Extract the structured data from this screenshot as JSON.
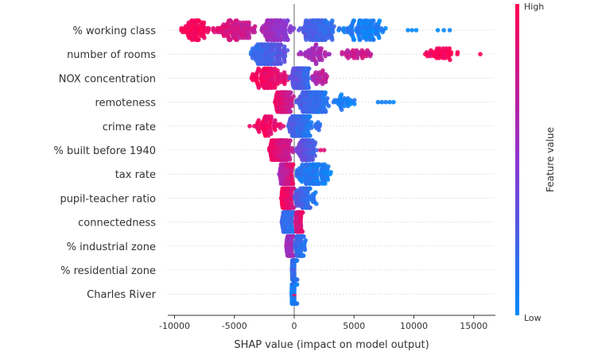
{
  "chart_data": {
    "type": "scatter",
    "subtype": "shap-beeswarm",
    "xlabel": "SHAP value (impact on model output)",
    "xlim": [
      -10700,
      16900
    ],
    "xticks": [
      -10000,
      -5000,
      0,
      5000,
      10000,
      15000
    ],
    "xtick_labels": [
      "-10000",
      "-5000",
      "0",
      "5000",
      "10000",
      "15000"
    ],
    "colorbar": {
      "label": "Feature value",
      "high_label": "High",
      "low_label": "Low",
      "low_color": "#008bfb",
      "high_color": "#ff0052"
    },
    "grid": false,
    "features": [
      {
        "name": "% working class",
        "clusters": [
          [
            -9500,
            -7000,
            90,
            1,
            0.95
          ],
          [
            -7000,
            -3000,
            110,
            0.9,
            0.7
          ],
          [
            -3000,
            0,
            150,
            0.65,
            0.45
          ],
          [
            300,
            3500,
            150,
            0.3,
            0.15
          ],
          [
            3500,
            8000,
            110,
            0.1,
            0.05
          ],
          [
            9500,
            10200,
            3,
            0.05,
            0.05
          ],
          [
            12000,
            13000,
            3,
            0.03,
            0.03
          ]
        ]
      },
      {
        "name": "number of rooms",
        "clusters": [
          [
            -3700,
            -500,
            220,
            0.15,
            0.35
          ],
          [
            0,
            3500,
            50,
            0.55,
            0.65
          ],
          [
            3500,
            6700,
            35,
            0.7,
            0.8
          ],
          [
            10500,
            14000,
            45,
            0.95,
            1
          ],
          [
            15500,
            15600,
            1,
            1,
            1
          ]
        ]
      },
      {
        "name": "NOX concentration",
        "clusters": [
          [
            -4000,
            -400,
            110,
            1,
            0.85
          ],
          [
            -400,
            1400,
            170,
            0.4,
            0.15
          ],
          [
            1400,
            3000,
            30,
            0.6,
            0.75
          ]
        ]
      },
      {
        "name": "remoteness",
        "clusters": [
          [
            -1700,
            0,
            140,
            0.95,
            0.7
          ],
          [
            0,
            3000,
            200,
            0.3,
            0.1
          ],
          [
            3000,
            5200,
            30,
            0.1,
            0.05
          ],
          [
            7000,
            8300,
            5,
            0.05,
            0.05
          ]
        ]
      },
      {
        "name": "crime rate",
        "clusters": [
          [
            -3800,
            -600,
            60,
            1,
            0.85
          ],
          [
            -600,
            1500,
            220,
            0.3,
            0.1
          ],
          [
            1500,
            2300,
            10,
            0.2,
            0.2
          ]
        ]
      },
      {
        "name": "% built before 1940",
        "clusters": [
          [
            -2200,
            0,
            170,
            0.95,
            0.7
          ],
          [
            0,
            2000,
            130,
            0.45,
            0.2
          ],
          [
            2200,
            2500,
            2,
            0.9,
            0.9
          ]
        ]
      },
      {
        "name": "tax rate",
        "clusters": [
          [
            -1300,
            0,
            150,
            0.6,
            0.9
          ],
          [
            0,
            3200,
            150,
            0.15,
            0.05
          ]
        ]
      },
      {
        "name": "pupil-teacher ratio",
        "clusters": [
          [
            -1100,
            0,
            200,
            1,
            0.8
          ],
          [
            0,
            1900,
            90,
            0.3,
            0.1
          ]
        ]
      },
      {
        "name": "connectedness",
        "clusters": [
          [
            -1100,
            0,
            150,
            0.2,
            0.15
          ],
          [
            0,
            800,
            110,
            0.75,
            0.9
          ]
        ]
      },
      {
        "name": "% industrial zone",
        "clusters": [
          [
            -700,
            0,
            130,
            0.6,
            0.55
          ],
          [
            0,
            1000,
            130,
            0.25,
            0.1
          ]
        ]
      },
      {
        "name": "% residential zone",
        "clusters": [
          [
            -200,
            250,
            250,
            0.2,
            0.15
          ]
        ]
      },
      {
        "name": "Charles River",
        "clusters": [
          [
            -250,
            250,
            280,
            0.05,
            0.1
          ],
          [
            -100,
            100,
            10,
            0.95,
            1
          ]
        ]
      }
    ]
  }
}
